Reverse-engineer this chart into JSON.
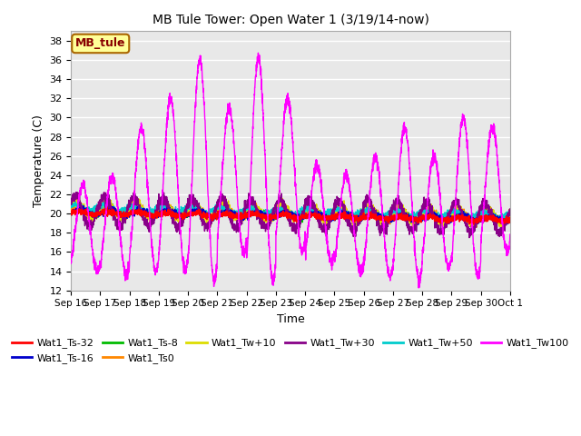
{
  "title": "MB Tule Tower: Open Water 1 (3/19/14-now)",
  "xlabel": "Time",
  "ylabel": "Temperature (C)",
  "ylim": [
    12,
    39
  ],
  "yticks": [
    12,
    14,
    16,
    18,
    20,
    22,
    24,
    26,
    28,
    30,
    32,
    34,
    36,
    38
  ],
  "legend_label": "MB_tule",
  "legend_box_color": "#ffff99",
  "legend_box_border": "#aa6600",
  "series": {
    "Wat1_Ts-32": {
      "color": "#ff0000"
    },
    "Wat1_Ts-16": {
      "color": "#0000cc"
    },
    "Wat1_Ts-8": {
      "color": "#00bb00"
    },
    "Wat1_Ts0": {
      "color": "#ff8800"
    },
    "Wat1_Tw+10": {
      "color": "#dddd00"
    },
    "Wat1_Tw+30": {
      "color": "#880088"
    },
    "Wat1_Tw+50": {
      "color": "#00cccc"
    },
    "Wat1_Tw100": {
      "color": "#ff00ff"
    }
  },
  "xticklabels": [
    "Sep 16",
    "Sep 17",
    "Sep 18",
    "Sep 19",
    "Sep 20",
    "Sep 21",
    "Sep 22",
    "Sep 23",
    "Sep 24",
    "Sep 25",
    "Sep 26",
    "Sep 27",
    "Sep 28",
    "Sep 29",
    "Sep 30",
    "Oct 1"
  ],
  "num_days": 15,
  "figsize": [
    6.4,
    4.8
  ],
  "dpi": 100
}
